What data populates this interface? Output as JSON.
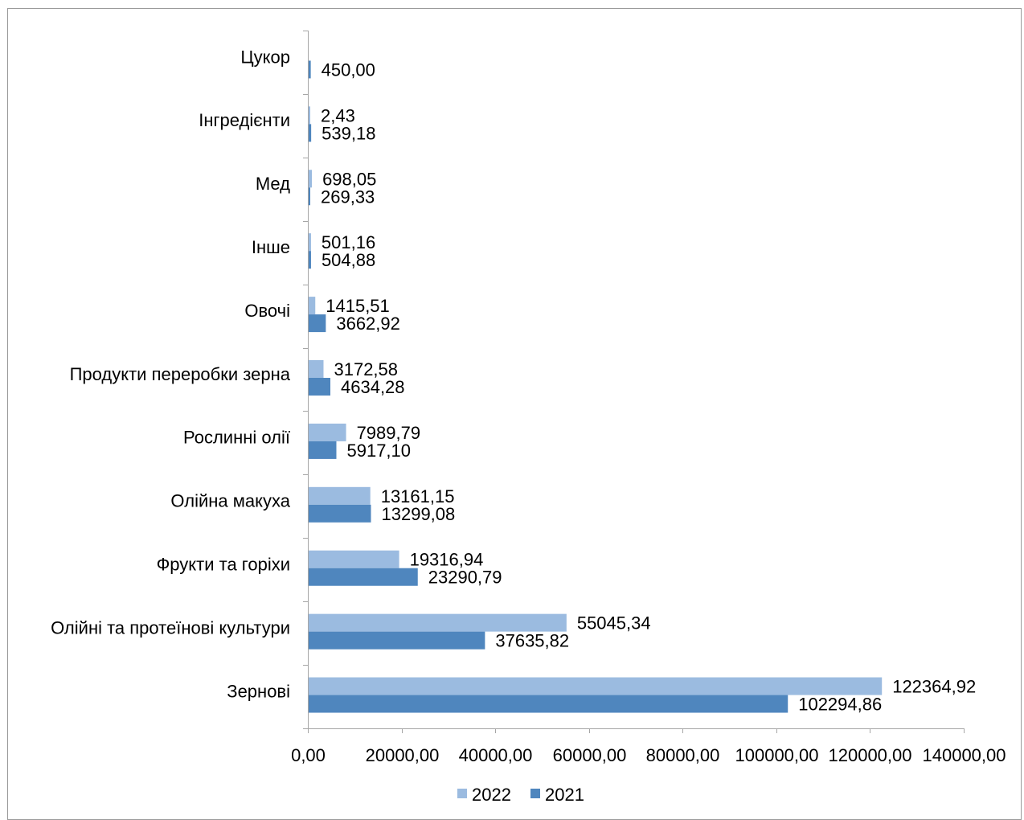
{
  "chart_data": {
    "type": "bar",
    "orientation": "horizontal",
    "categories": [
      "Цукор",
      "Інгредієнти",
      "Мед",
      "Інше",
      "Овочі",
      "Продукти переробки зерна",
      "Рослинні олії",
      "Олійна макуха",
      "Фрукти та горіхи",
      "Олійні та протеїнові культури",
      "Зернові"
    ],
    "series": [
      {
        "name": "2022",
        "color": "#9bbbe0",
        "values": [
          null,
          2.43,
          698.05,
          501.16,
          1415.51,
          3172.58,
          7989.79,
          13161.15,
          19316.94,
          55045.34,
          122364.92
        ],
        "labels": [
          "",
          "2,43",
          "698,05",
          "501,16",
          "1415,51",
          "3172,58",
          "7989,79",
          "13161,15",
          "19316,94",
          "55045,34",
          "122364,92"
        ]
      },
      {
        "name": "2021",
        "color": "#4f86be",
        "values": [
          450.0,
          539.18,
          269.33,
          504.88,
          3662.92,
          4634.28,
          5917.1,
          13299.08,
          23290.79,
          37635.82,
          102294.86
        ],
        "labels": [
          "450,00",
          "539,18",
          "269,33",
          "504,88",
          "3662,92",
          "4634,28",
          "5917,10",
          "13299,08",
          "23290,79",
          "37635,82",
          "102294,86"
        ]
      }
    ],
    "xlim": [
      0,
      140000
    ],
    "xticks": [
      0,
      20000,
      40000,
      60000,
      80000,
      100000,
      120000,
      140000
    ],
    "xtick_labels": [
      "0,00",
      "20000,00",
      "40000,00",
      "60000,00",
      "80000,00",
      "100000,00",
      "120000,00",
      "140000,00"
    ],
    "grid": false,
    "legend_position": "bottom"
  }
}
